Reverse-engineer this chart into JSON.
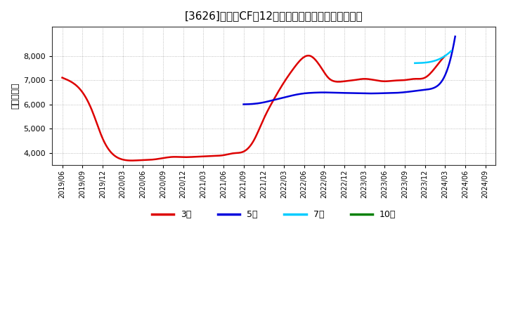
{
  "title": "[3626]　営業CFの12か月移動合計の標準偏差の推移",
  "ylabel": "（百万円）",
  "background_color": "#ffffff",
  "plot_background": "#ffffff",
  "grid_color": "#999999",
  "ylim": [
    3500,
    9200
  ],
  "yticks": [
    4000,
    5000,
    6000,
    7000,
    8000
  ],
  "x_labels": [
    "2019/06",
    "2019/09",
    "2019/12",
    "2020/03",
    "2020/06",
    "2020/09",
    "2020/12",
    "2021/03",
    "2021/06",
    "2021/09",
    "2021/12",
    "2022/03",
    "2022/06",
    "2022/09",
    "2022/12",
    "2023/03",
    "2023/06",
    "2023/09",
    "2023/12",
    "2024/03",
    "2024/06",
    "2024/09"
  ],
  "series_3year": {
    "color": "#dd0000",
    "label": "3年",
    "xs": [
      0,
      0.5,
      1,
      1.5,
      2,
      2.5,
      3,
      3.5,
      4,
      4.5,
      5,
      5.5,
      6,
      6.5,
      7,
      7.5,
      8,
      8.5,
      9,
      9.5,
      10,
      10.5,
      11,
      11.5,
      12,
      12.3,
      12.6,
      12.9,
      13.2,
      13.5,
      14,
      14.5,
      15,
      15.5,
      16,
      16.5,
      17,
      17.5,
      18,
      18.5,
      19
    ],
    "ys": [
      7100,
      6900,
      6500,
      5700,
      4600,
      3950,
      3720,
      3680,
      3700,
      3720,
      3780,
      3830,
      3820,
      3830,
      3850,
      3870,
      3900,
      3980,
      4050,
      4500,
      5400,
      6200,
      6900,
      7500,
      7950,
      8000,
      7800,
      7450,
      7100,
      6950,
      6950,
      7000,
      7050,
      7000,
      6950,
      6980,
      7000,
      7050,
      7100,
      7500,
      8000
    ]
  },
  "series_5year": {
    "color": "#0000dd",
    "label": "5年",
    "xs": [
      9,
      9.5,
      10,
      10.5,
      11,
      11.5,
      12,
      12.5,
      13,
      13.5,
      14,
      14.5,
      15,
      15.5,
      16,
      16.5,
      17,
      17.5,
      18,
      18.5,
      19,
      19.5
    ],
    "ys": [
      6000,
      6020,
      6080,
      6180,
      6280,
      6380,
      6450,
      6480,
      6490,
      6480,
      6470,
      6460,
      6450,
      6450,
      6460,
      6470,
      6500,
      6550,
      6600,
      6700,
      7200,
      8800
    ]
  },
  "series_7year": {
    "color": "#00ccff",
    "label": "7年",
    "xs": [
      17.5,
      18,
      18.5,
      19,
      19.3
    ],
    "ys": [
      7700,
      7720,
      7800,
      8000,
      8200
    ]
  },
  "series_10year": {
    "color": "#008000",
    "label": "10年",
    "xs": [],
    "ys": []
  },
  "legend_colors": {
    "3年": "#dd0000",
    "5年": "#0000dd",
    "7年": "#00ccff",
    "10年": "#008000"
  }
}
